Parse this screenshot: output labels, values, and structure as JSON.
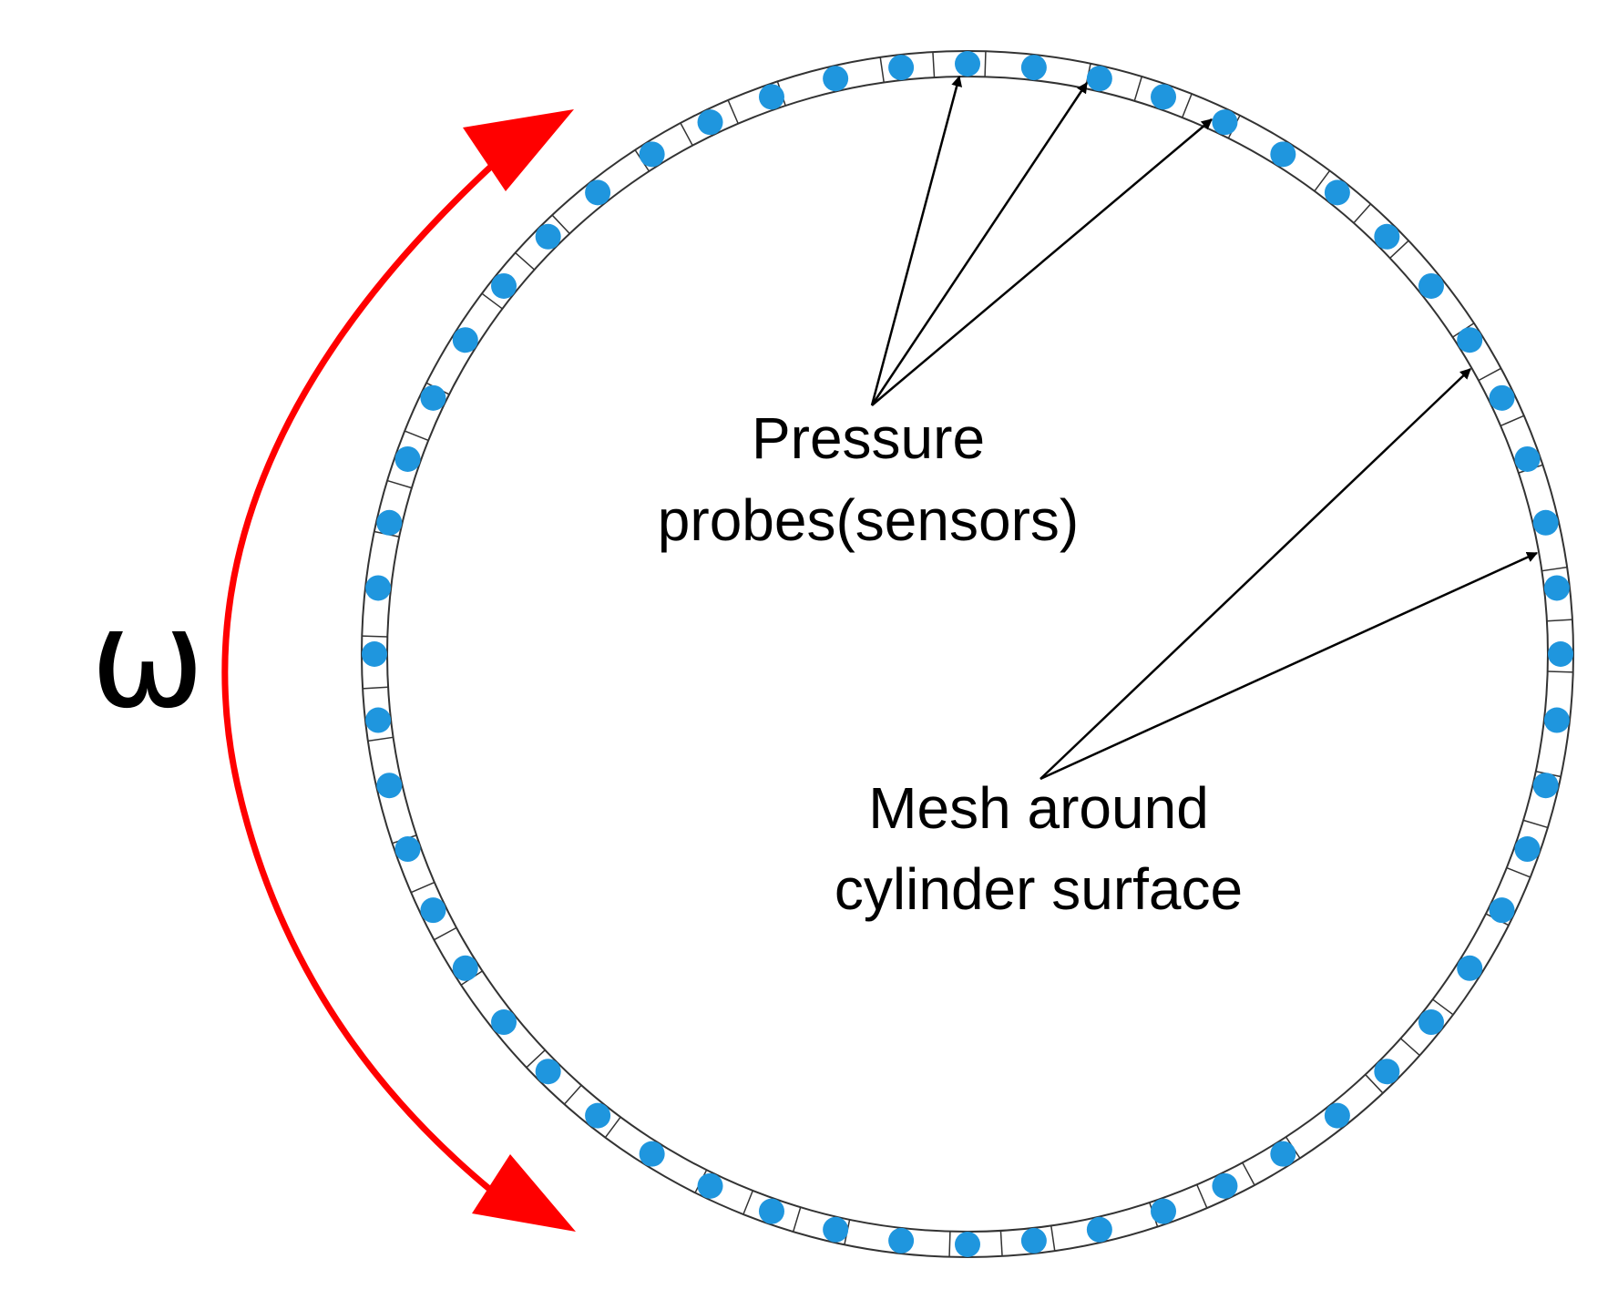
{
  "labels": {
    "omega": "ω",
    "pressure_line1": "Pressure",
    "pressure_line2": "probes(sensors)",
    "mesh_line1": "Mesh around",
    "mesh_line2": "cylinder surface"
  },
  "colors": {
    "probe": "#1f96de",
    "rotation_arrow": "#ff0000",
    "mesh": "#333333",
    "pointer": "#000000",
    "background": "#ffffff"
  },
  "probe_count": 56,
  "mesh_cell_count": 72
}
